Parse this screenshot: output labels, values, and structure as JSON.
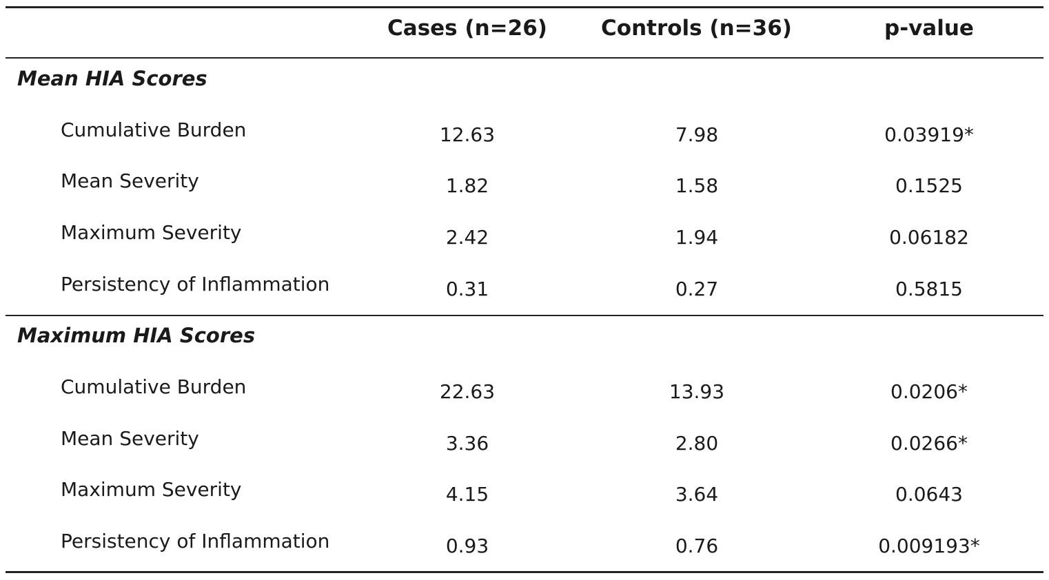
{
  "header": {
    "cases": "Cases (n=26)",
    "controls": "Controls (n=36)",
    "pvalue": "p-value"
  },
  "sections": [
    {
      "title": "Mean HIA Scores",
      "rows": [
        {
          "label": "Cumulative Burden",
          "cases": "12.63",
          "controls": "7.98",
          "pvalue": "0.03919*"
        },
        {
          "label": "Mean Severity",
          "cases": "1.82",
          "controls": "1.58",
          "pvalue": "0.1525"
        },
        {
          "label": "Maximum Severity",
          "cases": "2.42",
          "controls": "1.94",
          "pvalue": "0.06182"
        },
        {
          "label": "Persistency of Inflammation",
          "cases": "0.31",
          "controls": "0.27",
          "pvalue": "0.5815"
        }
      ]
    },
    {
      "title": "Maximum HIA Scores",
      "rows": [
        {
          "label": "Cumulative Burden",
          "cases": "22.63",
          "controls": "13.93",
          "pvalue": "0.0206*"
        },
        {
          "label": "Mean Severity",
          "cases": "3.36",
          "controls": "2.80",
          "pvalue": "0.0266*"
        },
        {
          "label": "Maximum Severity",
          "cases": "4.15",
          "controls": "3.64",
          "pvalue": "0.0643"
        },
        {
          "label": "Persistency of Inflammation",
          "cases": "0.93",
          "controls": "0.76",
          "pvalue": "0.009193*"
        }
      ]
    }
  ]
}
